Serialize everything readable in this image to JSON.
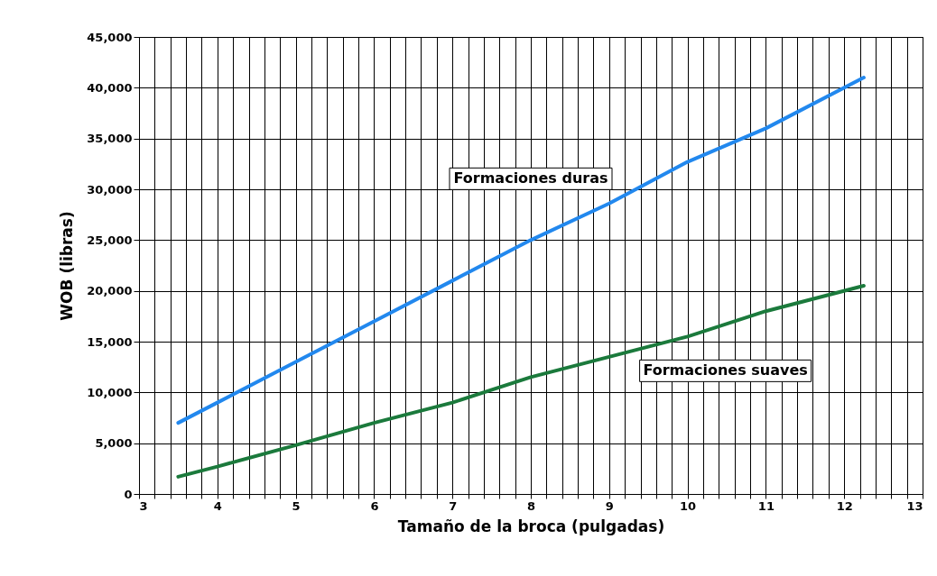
{
  "chart_data": {
    "type": "line",
    "xlabel": "Tamaño de la broca (pulgadas)",
    "ylabel": "WOB (libras)",
    "x": [
      3.5,
      4,
      5,
      6,
      7,
      8,
      9,
      10,
      11,
      12.25
    ],
    "series": [
      {
        "name": "Formaciones duras",
        "color": "#2288ee",
        "values": [
          7000,
          9000,
          13000,
          17000,
          21000,
          25000,
          28600,
          32700,
          36000,
          41000
        ]
      },
      {
        "name": "Formaciones suaves",
        "color": "#1b7a3c",
        "values": [
          1700,
          2700,
          4800,
          7000,
          9000,
          11500,
          13500,
          15500,
          18000,
          20500
        ]
      }
    ],
    "xlim": [
      3,
      13
    ],
    "xticks": [
      3,
      {
        "value": 3.2,
        "label": null
      },
      {
        "value": 3.4,
        "label": null
      },
      {
        "value": 3.6,
        "label": null
      },
      {
        "value": 3.8,
        "label": null
      },
      4,
      {
        "value": 4.2,
        "label": null
      },
      {
        "value": 4.4,
        "label": null
      },
      {
        "value": 4.6,
        "label": null
      },
      {
        "value": 4.8,
        "label": null
      },
      5,
      {
        "value": 5.2,
        "label": null
      },
      {
        "value": 5.4,
        "label": null
      },
      {
        "value": 5.6,
        "label": null
      },
      {
        "value": 5.8,
        "label": null
      },
      6,
      {
        "value": 6.2,
        "label": null
      },
      {
        "value": 6.4,
        "label": null
      },
      {
        "value": 6.6,
        "label": null
      },
      {
        "value": 6.8,
        "label": null
      },
      7,
      {
        "value": 7.2,
        "label": null
      },
      {
        "value": 7.4,
        "label": null
      },
      {
        "value": 7.6,
        "label": null
      },
      {
        "value": 7.8,
        "label": null
      },
      8,
      {
        "value": 8.2,
        "label": null
      },
      {
        "value": 8.4,
        "label": null
      },
      {
        "value": 8.6,
        "label": null
      },
      {
        "value": 8.8,
        "label": null
      },
      9,
      {
        "value": 9.2,
        "label": null
      },
      {
        "value": 9.4,
        "label": null
      },
      {
        "value": 9.6,
        "label": null
      },
      {
        "value": 9.8,
        "label": null
      },
      10,
      {
        "value": 10.2,
        "label": null
      },
      {
        "value": 10.4,
        "label": null
      },
      {
        "value": 10.6,
        "label": null
      },
      {
        "value": 10.8,
        "label": null
      },
      11,
      {
        "value": 11.2,
        "label": null
      },
      {
        "value": 11.4,
        "label": null
      },
      {
        "value": 11.6,
        "label": null
      },
      {
        "value": 11.8,
        "label": null
      },
      12,
      {
        "value": 12.2,
        "label": null
      },
      {
        "value": 12.4,
        "label": null
      },
      {
        "value": 12.6,
        "label": null
      },
      {
        "value": 12.8,
        "label": null
      },
      13
    ],
    "ylim": [
      0,
      45000
    ],
    "yticks": [
      0,
      {
        "value": 5000,
        "label": "5,000"
      },
      {
        "value": 10000,
        "label": "10,000"
      },
      {
        "value": 15000,
        "label": "15,000"
      },
      {
        "value": 20000,
        "label": "20,000"
      },
      {
        "value": 25000,
        "label": "25,000"
      },
      {
        "value": 30000,
        "label": "30,000"
      },
      {
        "value": 35000,
        "label": "35,000"
      },
      {
        "value": 40000,
        "label": "40,000"
      },
      {
        "value": 45000,
        "label": "45,000"
      }
    ],
    "grid": true,
    "legend": false,
    "marker": "none",
    "line_style": "solid"
  }
}
